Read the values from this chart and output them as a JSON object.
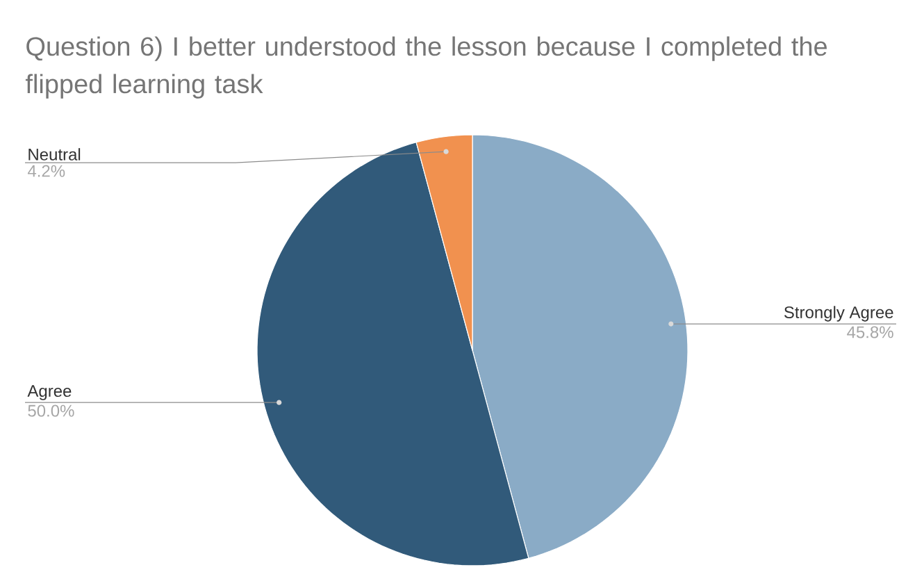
{
  "chart_data": {
    "type": "pie",
    "title": "Question 6) I better understood the lesson because I completed the flipped learning task",
    "categories": [
      "Strongly Agree",
      "Agree",
      "Neutral"
    ],
    "values": [
      45.8,
      50.0,
      4.2
    ],
    "colors": [
      "#8aabc6",
      "#315a7a",
      "#f1914f"
    ],
    "value_labels": [
      "45.8%",
      "50.0%",
      "4.2%"
    ]
  }
}
